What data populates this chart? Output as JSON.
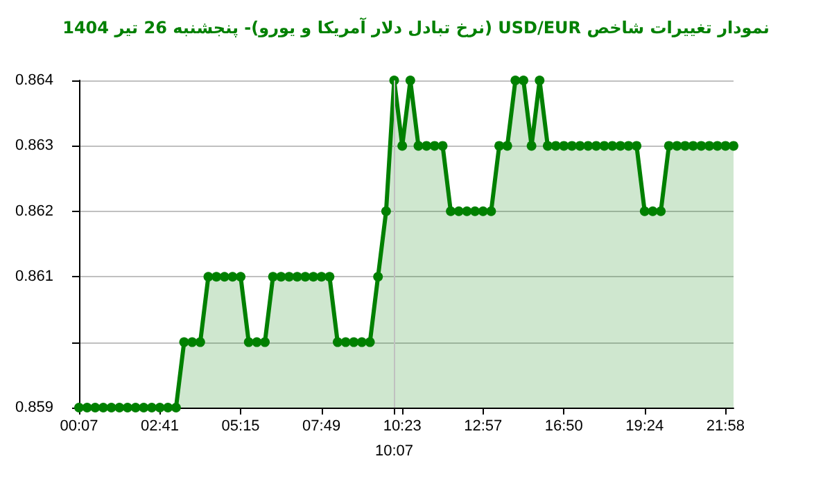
{
  "chart_data": {
    "type": "area",
    "title": "نمودار تغییرات شاخص USD/EUR (نرخ تبادل دلار آمریکا و یورو)-  پنجشنبه  26 تیر 1404",
    "categories": [
      "00:07",
      null,
      null,
      null,
      null,
      null,
      null,
      null,
      null,
      null,
      "02:41",
      null,
      null,
      null,
      null,
      null,
      null,
      null,
      null,
      null,
      "05:15",
      null,
      null,
      null,
      null,
      null,
      null,
      null,
      null,
      null,
      "07:49",
      null,
      null,
      null,
      null,
      null,
      null,
      null,
      null,
      "10:07",
      "10:23",
      null,
      null,
      null,
      null,
      null,
      null,
      null,
      null,
      null,
      "12:57",
      null,
      null,
      null,
      null,
      null,
      null,
      null,
      null,
      null,
      "16:50",
      null,
      null,
      null,
      null,
      null,
      null,
      null,
      null,
      null,
      "19:24",
      null,
      null,
      null,
      null,
      null,
      null,
      null,
      null,
      null,
      "21:58",
      null
    ],
    "series": [
      {
        "color": "#008000",
        "values": [
          0.859,
          0.859,
          0.859,
          0.859,
          0.859,
          0.859,
          0.859,
          0.859,
          0.859,
          0.859,
          0.859,
          0.859,
          0.859,
          0.86,
          0.86,
          0.86,
          0.861,
          0.861,
          0.861,
          0.861,
          0.861,
          0.86,
          0.86,
          0.86,
          0.861,
          0.861,
          0.861,
          0.861,
          0.861,
          0.861,
          0.861,
          0.861,
          0.86,
          0.86,
          0.86,
          0.86,
          0.86,
          0.861,
          0.862,
          0.864,
          0.863,
          0.864,
          0.863,
          0.863,
          0.863,
          0.863,
          0.862,
          0.862,
          0.862,
          0.862,
          0.862,
          0.862,
          0.863,
          0.863,
          0.864,
          0.864,
          0.863,
          0.864,
          0.863,
          0.863,
          0.863,
          0.863,
          0.863,
          0.863,
          0.863,
          0.863,
          0.863,
          0.863,
          0.863,
          0.863,
          0.862,
          0.862,
          0.862,
          0.863,
          0.863,
          0.863,
          0.863,
          0.863,
          0.863,
          0.863,
          0.863,
          0.863
        ]
      }
    ],
    "ylim": [
      0.859,
      0.864
    ],
    "yticks": [
      0.859,
      {
        "value": 0.86,
        "label": null
      },
      0.861,
      0.862,
      0.863,
      0.864
    ],
    "grid": "y",
    "marker": "circle",
    "line_style": "solid",
    "ref_lines": [
      {
        "axis": "x",
        "value": "10:07",
        "color": "#c0c0c0"
      }
    ]
  }
}
